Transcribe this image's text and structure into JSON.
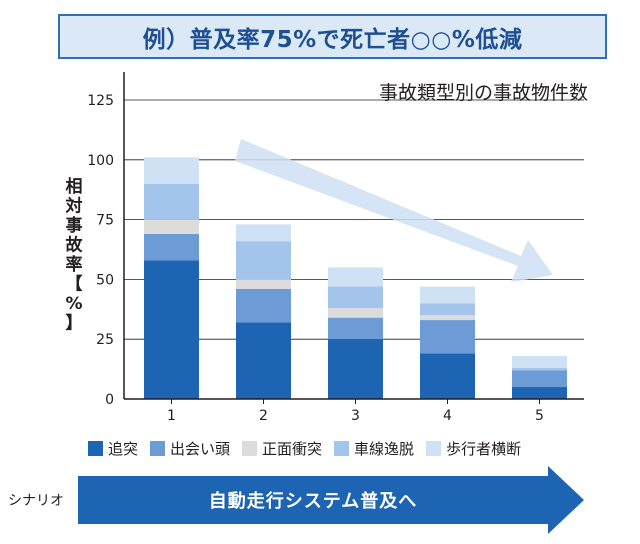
{
  "banner": {
    "text": "例）普及率75%で死亡者○○%低減"
  },
  "chart_data": {
    "type": "bar",
    "stacked": true,
    "title": "事故類型別の事故物件数",
    "ylabel": "相対事故率【%】",
    "xlabel": "",
    "categories": [
      "1",
      "2",
      "3",
      "4",
      "5"
    ],
    "ylim": [
      0,
      125
    ],
    "yticks": [
      0,
      25,
      50,
      75,
      100,
      125
    ],
    "grid": true,
    "legend_position": "bottom",
    "series": [
      {
        "name": "追突",
        "color": "#1d64b3",
        "values": [
          58,
          32,
          25,
          19,
          5
        ]
      },
      {
        "name": "出会い頭",
        "color": "#6d9bd6",
        "values": [
          11,
          14,
          9,
          14,
          7
        ]
      },
      {
        "name": "正面衝突",
        "color": "#dcdcdc",
        "values": [
          6,
          4,
          4,
          2,
          0
        ]
      },
      {
        "name": "車線逸脱",
        "color": "#a4c5eb",
        "values": [
          15,
          16,
          9,
          5,
          1
        ]
      },
      {
        "name": "歩行者横断",
        "color": "#cfe1f5",
        "values": [
          11,
          7,
          8,
          7,
          5
        ]
      }
    ]
  },
  "scenario": {
    "label": "シナリオ",
    "arrow_text": "自動走行システム普及へ"
  },
  "colors": {
    "accent": "#1d64b3",
    "banner_bg": "#dbe9f7",
    "trend_arrow": "#cfe1f5"
  }
}
